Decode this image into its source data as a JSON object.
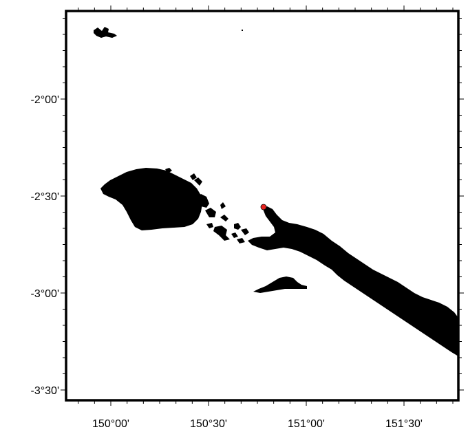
{
  "map": {
    "background": "#ffffff",
    "land_color": "#000000",
    "marker_color": "#e8231f",
    "frame_color": "#000000",
    "lon_labels": [
      "150°00'",
      "150°30'",
      "151°00'",
      "151°30'"
    ],
    "lat_labels": [
      "-2°00'",
      "-2°30'",
      "-3°00'",
      "-3°30'"
    ]
  }
}
